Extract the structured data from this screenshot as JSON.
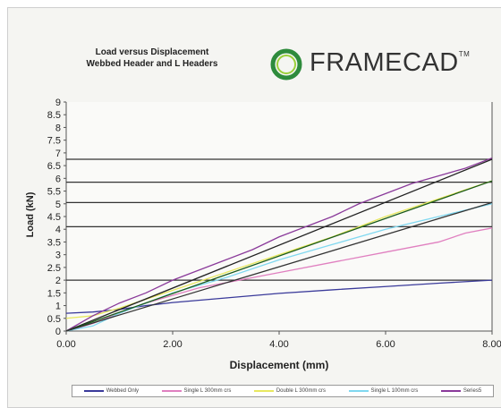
{
  "header": {
    "title_line1": "Load versus Displacement",
    "title_line2": "Webbed Header and L Headers"
  },
  "logo": {
    "text": "FRAMECAD",
    "tm": "TM",
    "ring_color_outer": "#2e8b3c",
    "ring_color_inner": "#9bd03a"
  },
  "chart_data": {
    "type": "line",
    "xlabel": "Displacement (mm)",
    "ylabel": "Load (kN)",
    "xlim": [
      0,
      8
    ],
    "ylim": [
      0,
      9
    ],
    "x_ticks": [
      "0.00",
      "2.00",
      "4.00",
      "6.00",
      "8.00"
    ],
    "y_ticks": [
      "0",
      "0.5",
      "1",
      "1.5",
      "2",
      "2.5",
      "3",
      "3.5",
      "4",
      "4.5",
      "5",
      "5.5",
      "6",
      "6.5",
      "7",
      "7.5",
      "8",
      "8.5",
      "9"
    ],
    "y_tick_values": [
      0,
      0.5,
      1,
      1.5,
      2,
      2.5,
      3,
      3.5,
      4,
      4.5,
      5,
      5.5,
      6,
      6.5,
      7,
      7.5,
      8,
      8.5,
      9
    ],
    "hlines": [
      2.0,
      4.1,
      5.05,
      5.85,
      6.75
    ],
    "grid": false,
    "legend_position": "bottom",
    "series": [
      {
        "name": "Webbed Only",
        "color": "#3a3a9a",
        "x": [
          0,
          0.5,
          1.0,
          1.5,
          2.0,
          3.0,
          4.0,
          5.0,
          6.0,
          7.0,
          8.0
        ],
        "y": [
          0.7,
          0.75,
          0.85,
          1.0,
          1.12,
          1.3,
          1.48,
          1.62,
          1.75,
          1.88,
          2.0
        ]
      },
      {
        "name": "Single L 300mm crs",
        "color": "#e080c0",
        "x": [
          0,
          0.5,
          1.0,
          1.5,
          2.0,
          2.5,
          3.0,
          4.0,
          5.0,
          6.0,
          7.0,
          7.5,
          8.0
        ],
        "y": [
          0,
          0.3,
          0.7,
          1.1,
          1.4,
          1.7,
          1.9,
          2.3,
          2.7,
          3.1,
          3.5,
          3.85,
          4.05
        ]
      },
      {
        "name": "Double L 300mm crs",
        "color": "#e8e860",
        "x": [
          0,
          0.5,
          1.0,
          2.0,
          3.0,
          4.0,
          5.0,
          6.0,
          7.0,
          8.0
        ],
        "y": [
          0.5,
          0.6,
          0.9,
          1.6,
          2.3,
          3.0,
          3.7,
          4.5,
          5.2,
          5.9
        ]
      },
      {
        "name": "Single L 100mm crs",
        "color": "#80d8f0",
        "x": [
          0,
          0.5,
          1.0,
          1.5,
          2.0,
          3.0,
          4.0,
          5.0,
          6.0,
          7.0,
          8.0
        ],
        "y": [
          0,
          0.2,
          0.7,
          1.1,
          1.5,
          2.1,
          2.8,
          3.4,
          4.0,
          4.5,
          5.0
        ]
      },
      {
        "name": "Series5",
        "color": "#8a3a9a",
        "x": [
          0,
          0.5,
          1.0,
          1.5,
          2.0,
          2.5,
          3.0,
          3.5,
          4.0,
          4.5,
          5.0,
          5.5,
          6.0,
          6.5,
          7.0,
          7.5,
          8.0
        ],
        "y": [
          0,
          0.6,
          1.1,
          1.5,
          2.0,
          2.4,
          2.8,
          3.2,
          3.7,
          4.1,
          4.5,
          5.0,
          5.4,
          5.8,
          6.1,
          6.4,
          6.8
        ]
      },
      {
        "name": "",
        "color": "#222222",
        "x": [
          0,
          8
        ],
        "y": [
          0,
          6.75
        ]
      },
      {
        "name": "",
        "color": "#1a5a1a",
        "x": [
          0,
          8
        ],
        "y": [
          0,
          5.9
        ]
      },
      {
        "name": "",
        "color": "#333333",
        "x": [
          0,
          8
        ],
        "y": [
          0,
          5.05
        ]
      }
    ]
  }
}
